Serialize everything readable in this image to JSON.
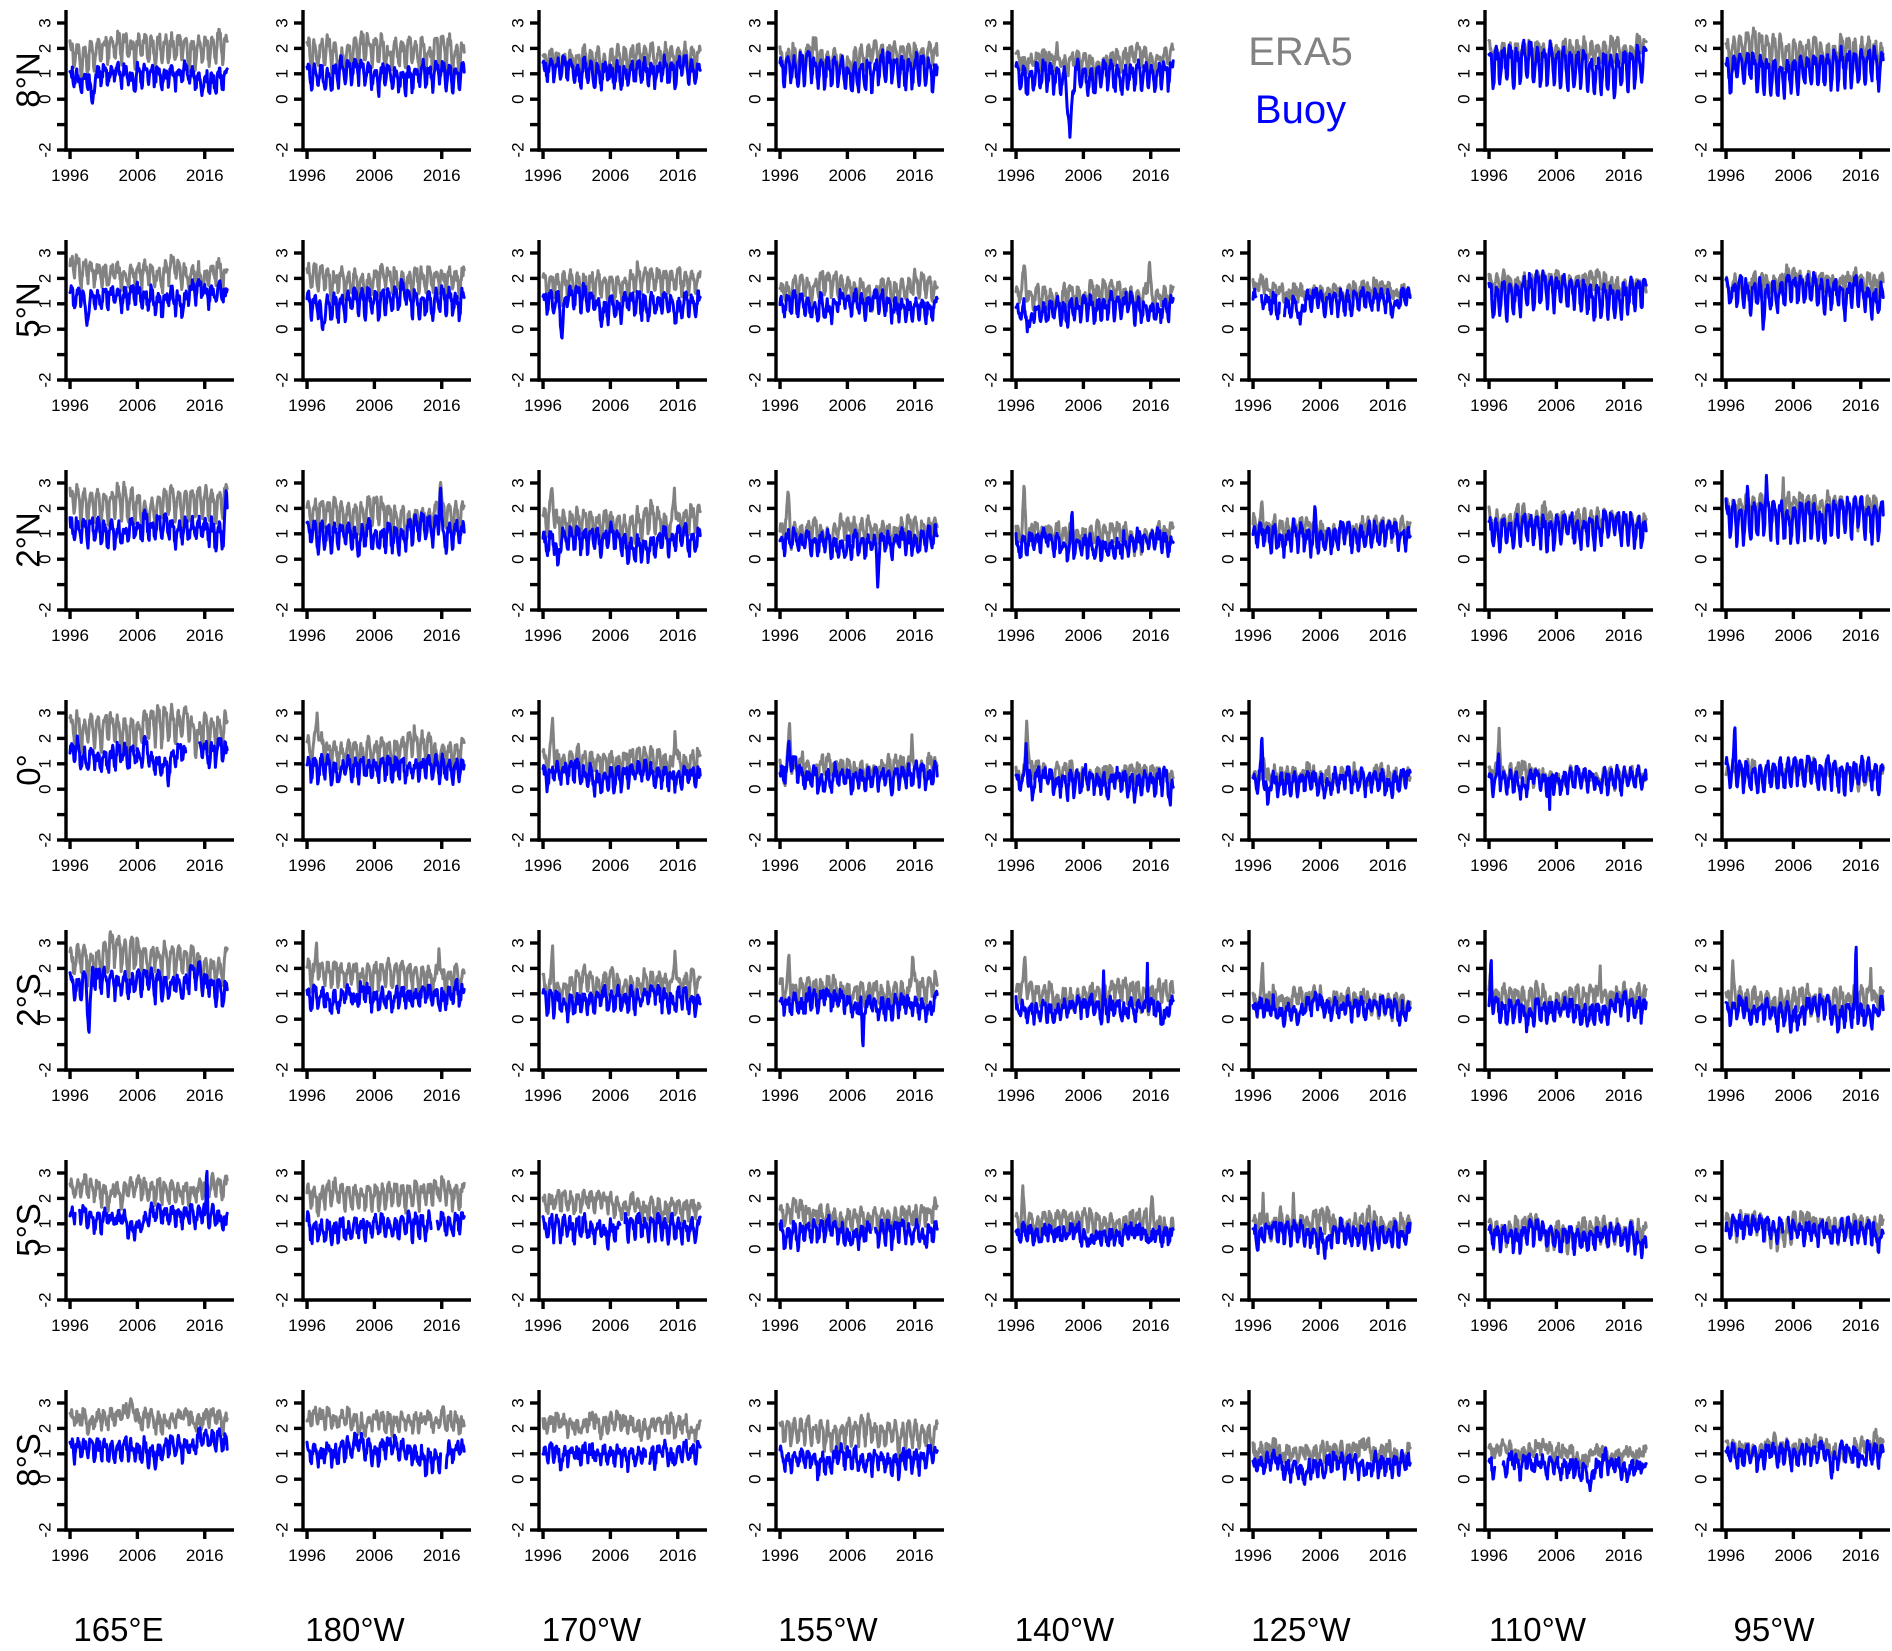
{
  "legend": {
    "era5_label": "ERA5",
    "buoy_label": "Buoy"
  },
  "chart_data": {
    "type": "line",
    "layout": "7x8 small-multiples grid; rows are latitudes, columns are longitudes",
    "rows": [
      "8°N",
      "5°N",
      "2°N",
      "0°",
      "2°S",
      "5°S",
      "8°S"
    ],
    "cols": [
      "165°E",
      "180°W",
      "170°W",
      "155°W",
      "140°W",
      "125°W",
      "110°W",
      "95°W"
    ],
    "xticks": [
      1996,
      2006,
      2016
    ],
    "xlim": [
      1995.4,
      2019.9
    ],
    "ylim": [
      -2,
      3.5
    ],
    "yticks": [
      -2,
      -1,
      0,
      1,
      2,
      3
    ],
    "ytick_labels": [
      "-2",
      "",
      "0",
      "1",
      "2",
      "3"
    ],
    "x_start": 1996.0,
    "x_end": 2019.33,
    "x_samples_per_year": 12,
    "series": [
      {
        "name": "ERA5",
        "color": "#828282"
      },
      {
        "name": "Buoy",
        "color": "#0000ff"
      }
    ],
    "legend_cell": {
      "row": "8°N",
      "col": "125°W"
    },
    "missing_panels": [
      {
        "row": "8°S",
        "col": "140°W"
      }
    ],
    "panel_param_legend": {
      "r": "row index into rows[]",
      "c": "column index into cols[]",
      "e": "ERA5 [mean, seasonal_amplitude]",
      "b": "Buoy [mean, seasonal_amplitude]",
      "ee": "ERA5 events [year, value, half_width_years]",
      "be": "Buoy events [year, value, half_width_years]",
      "bg": "Buoy data gaps [start_year, end_year]",
      "w": "slow-wander scale"
    },
    "panels": [
      {
        "r": 0,
        "c": 0,
        "e": [
          2.0,
          0.45
        ],
        "b": [
          0.9,
          0.3
        ],
        "be": [
          [
            1999.3,
            -0.3,
            0.6
          ]
        ]
      },
      {
        "r": 0,
        "c": 1,
        "e": [
          1.85,
          0.5
        ],
        "b": [
          1.0,
          0.4
        ]
      },
      {
        "r": 0,
        "c": 2,
        "e": [
          1.6,
          0.45
        ],
        "b": [
          1.1,
          0.35
        ]
      },
      {
        "r": 0,
        "c": 3,
        "e": [
          1.6,
          0.4
        ],
        "b": [
          1.15,
          0.5
        ]
      },
      {
        "r": 0,
        "c": 4,
        "e": [
          1.5,
          0.3
        ],
        "b": [
          0.95,
          0.45
        ],
        "be": [
          [
            2004.0,
            -1.5,
            0.9
          ]
        ]
      },
      {
        "r": 0,
        "c": 6,
        "e": [
          1.9,
          0.35
        ],
        "b": [
          1.35,
          0.65
        ]
      },
      {
        "r": 0,
        "c": 7,
        "e": [
          1.8,
          0.6
        ],
        "b": [
          1.2,
          0.55
        ]
      },
      {
        "r": 1,
        "c": 0,
        "e": [
          2.25,
          0.35
        ],
        "b": [
          1.25,
          0.3
        ],
        "be": [
          [
            1998.5,
            0.15,
            0.8
          ]
        ]
      },
      {
        "r": 1,
        "c": 1,
        "e": [
          2.0,
          0.4
        ],
        "b": [
          1.1,
          0.4
        ],
        "be": [
          [
            1998.3,
            -0.15,
            0.5
          ]
        ]
      },
      {
        "r": 1,
        "c": 2,
        "e": [
          1.8,
          0.4
        ],
        "b": [
          1.0,
          0.35
        ],
        "be": [
          [
            1998.8,
            -0.5,
            0.5
          ]
        ]
      },
      {
        "r": 1,
        "c": 3,
        "e": [
          1.55,
          0.35
        ],
        "b": [
          0.9,
          0.3
        ]
      },
      {
        "r": 1,
        "c": 4,
        "e": [
          1.35,
          0.3
        ],
        "b": [
          0.8,
          0.35
        ],
        "ee": [
          [
            1997.2,
            2.6,
            0.5
          ],
          [
            2015.8,
            2.8,
            0.5
          ]
        ],
        "be": [
          [
            1998.0,
            0.1,
            0.5
          ]
        ]
      },
      {
        "r": 1,
        "c": 5,
        "e": [
          1.55,
          0.15
        ],
        "b": [
          1.1,
          0.3
        ],
        "be": [
          [
            2003.0,
            0.2,
            0.4
          ]
        ],
        "bg": [
          [
            1996.5,
            1997.2
          ],
          [
            2000.0,
            2000.6
          ]
        ]
      },
      {
        "r": 1,
        "c": 6,
        "e": [
          1.75,
          0.25
        ],
        "b": [
          1.3,
          0.55
        ]
      },
      {
        "r": 1,
        "c": 7,
        "e": [
          1.85,
          0.3
        ],
        "b": [
          1.45,
          0.45
        ],
        "be": [
          [
            2001.5,
            0.0,
            0.4
          ]
        ]
      },
      {
        "r": 2,
        "c": 0,
        "e": [
          2.15,
          0.55
        ],
        "b": [
          1.2,
          0.4
        ],
        "ee": [
          [
            2019.2,
            3.0,
            0.4
          ]
        ],
        "be": [
          [
            2019.2,
            2.9,
            0.4
          ]
        ]
      },
      {
        "r": 2,
        "c": 1,
        "e": [
          1.7,
          0.5
        ],
        "b": [
          0.95,
          0.4
        ],
        "ee": [
          [
            2015.8,
            3.2,
            0.4
          ]
        ],
        "be": [
          [
            2015.8,
            3.1,
            0.35
          ]
        ]
      },
      {
        "r": 2,
        "c": 2,
        "e": [
          1.45,
          0.5
        ],
        "b": [
          0.75,
          0.35
        ],
        "ee": [
          [
            1997.3,
            2.9,
            0.6
          ],
          [
            2015.5,
            2.8,
            0.5
          ]
        ],
        "be": [
          [
            1998.2,
            -0.4,
            0.5
          ]
        ]
      },
      {
        "r": 2,
        "c": 3,
        "e": [
          1.1,
          0.35
        ],
        "b": [
          0.65,
          0.3
        ],
        "ee": [
          [
            1997.2,
            2.8,
            0.5
          ]
        ],
        "be": [
          [
            2010.5,
            -1.1,
            0.4
          ]
        ]
      },
      {
        "r": 2,
        "c": 4,
        "e": [
          1.0,
          0.3
        ],
        "b": [
          0.6,
          0.3
        ],
        "ee": [
          [
            1997.2,
            3.1,
            0.4
          ]
        ],
        "be": [
          [
            2004.3,
            2.1,
            0.3
          ]
        ]
      },
      {
        "r": 2,
        "c": 5,
        "e": [
          1.2,
          0.3
        ],
        "b": [
          0.85,
          0.35
        ],
        "ee": [
          [
            1997.3,
            2.4,
            0.4
          ]
        ],
        "be": [
          [
            2005.2,
            2.3,
            0.3
          ]
        ]
      },
      {
        "r": 2,
        "c": 6,
        "e": [
          1.5,
          0.35
        ],
        "b": [
          1.15,
          0.45
        ]
      },
      {
        "r": 2,
        "c": 7,
        "e": [
          1.9,
          0.45
        ],
        "b": [
          1.7,
          0.6
        ],
        "ee": [
          [
            2004.5,
            3.2,
            0.3
          ]
        ],
        "be": [
          [
            1999.2,
            3.1,
            0.25
          ],
          [
            2002.0,
            3.3,
            0.2
          ]
        ]
      },
      {
        "r": 3,
        "c": 0,
        "e": [
          2.4,
          0.55
        ],
        "b": [
          1.25,
          0.3
        ],
        "bg": [
          [
            2013.2,
            2015.2
          ]
        ],
        "w": 0.3
      },
      {
        "r": 3,
        "c": 1,
        "e": [
          1.5,
          0.5
        ],
        "b": [
          0.85,
          0.35
        ],
        "ee": [
          [
            1997.5,
            3.0,
            0.6
          ]
        ]
      },
      {
        "r": 3,
        "c": 2,
        "e": [
          1.05,
          0.4
        ],
        "b": [
          0.55,
          0.3
        ],
        "ee": [
          [
            1997.4,
            2.9,
            0.5
          ],
          [
            2015.6,
            2.4,
            0.4
          ]
        ]
      },
      {
        "r": 3,
        "c": 3,
        "e": [
          0.8,
          0.3
        ],
        "b": [
          0.45,
          0.3
        ],
        "ee": [
          [
            1997.4,
            2.7,
            0.5
          ],
          [
            2015.6,
            2.3,
            0.3
          ]
        ],
        "be": [
          [
            1997.3,
            2.0,
            0.35
          ]
        ]
      },
      {
        "r": 3,
        "c": 4,
        "e": [
          0.55,
          0.25
        ],
        "b": [
          0.35,
          0.3
        ],
        "ee": [
          [
            1997.6,
            2.8,
            0.5
          ]
        ],
        "be": [
          [
            1997.5,
            1.8,
            0.4
          ],
          [
            1998.4,
            -0.5,
            0.3
          ],
          [
            2018.9,
            -0.7,
            0.3
          ]
        ]
      },
      {
        "r": 3,
        "c": 5,
        "e": [
          0.5,
          0.2
        ],
        "b": [
          0.3,
          0.3
        ],
        "ee": [
          [
            1997.6,
            1.3,
            0.4
          ]
        ],
        "be": [
          [
            1997.3,
            2.25,
            0.3
          ],
          [
            1998.2,
            -0.8,
            0.4
          ]
        ]
      },
      {
        "r": 3,
        "c": 6,
        "e": [
          0.5,
          0.25
        ],
        "b": [
          0.35,
          0.3
        ],
        "ee": [
          [
            1997.5,
            2.4,
            0.4
          ]
        ],
        "be": [
          [
            1997.4,
            1.5,
            0.3
          ],
          [
            2005.0,
            -0.8,
            0.2
          ]
        ]
      },
      {
        "r": 3,
        "c": 7,
        "e": [
          0.6,
          0.25
        ],
        "b": [
          0.7,
          0.45
        ],
        "be": [
          [
            1997.3,
            2.7,
            0.3
          ]
        ]
      },
      {
        "r": 4,
        "c": 0,
        "e": [
          2.3,
          0.5
        ],
        "b": [
          1.25,
          0.4
        ],
        "be": [
          [
            1998.8,
            -0.7,
            0.6
          ]
        ],
        "w": 0.3
      },
      {
        "r": 4,
        "c": 1,
        "e": [
          1.65,
          0.45
        ],
        "b": [
          0.85,
          0.3
        ],
        "ee": [
          [
            1997.4,
            3.1,
            0.4
          ],
          [
            2015.6,
            2.9,
            0.4
          ]
        ]
      },
      {
        "r": 4,
        "c": 2,
        "e": [
          1.35,
          0.4
        ],
        "b": [
          0.7,
          0.3
        ],
        "ee": [
          [
            1997.4,
            3.0,
            0.4
          ],
          [
            2015.6,
            2.8,
            0.4
          ]
        ]
      },
      {
        "r": 4,
        "c": 3,
        "e": [
          1.1,
          0.35
        ],
        "b": [
          0.6,
          0.25
        ],
        "ee": [
          [
            1997.3,
            2.7,
            0.4
          ],
          [
            2015.7,
            2.7,
            0.4
          ]
        ],
        "be": [
          [
            2008.3,
            -1.4,
            0.3
          ]
        ]
      },
      {
        "r": 4,
        "c": 4,
        "e": [
          0.95,
          0.35
        ],
        "b": [
          0.45,
          0.25
        ],
        "ee": [
          [
            1997.3,
            2.6,
            0.4
          ]
        ],
        "be": [
          [
            2009.0,
            1.9,
            0.2
          ],
          [
            2015.5,
            2.2,
            0.2
          ]
        ]
      },
      {
        "r": 4,
        "c": 5,
        "e": [
          0.75,
          0.3
        ],
        "b": [
          0.4,
          0.25
        ],
        "ee": [
          [
            1997.4,
            2.3,
            0.4
          ]
        ]
      },
      {
        "r": 4,
        "c": 6,
        "e": [
          0.75,
          0.35
        ],
        "b": [
          0.4,
          0.3
        ],
        "ee": [
          [
            1996.2,
            2.0,
            0.3
          ],
          [
            2012.5,
            2.1,
            0.3
          ]
        ],
        "be": [
          [
            1996.3,
            2.8,
            0.25
          ]
        ]
      },
      {
        "r": 4,
        "c": 7,
        "e": [
          0.65,
          0.4
        ],
        "b": [
          0.35,
          0.3
        ],
        "ee": [
          [
            1997.0,
            2.3,
            0.3
          ],
          [
            2017.5,
            2.0,
            0.3
          ]
        ],
        "be": [
          [
            2015.3,
            3.5,
            0.25
          ]
        ]
      },
      {
        "r": 5,
        "c": 0,
        "e": [
          2.4,
          0.3
        ],
        "b": [
          1.25,
          0.25
        ],
        "be": [
          [
            2016.3,
            3.6,
            0.2
          ]
        ],
        "bg": [
          [
            1996.8,
            1997.4
          ]
        ]
      },
      {
        "r": 5,
        "c": 1,
        "e": [
          2.1,
          0.35
        ],
        "b": [
          0.95,
          0.35
        ],
        "bg": [
          [
            2014.5,
            2015.3
          ]
        ]
      },
      {
        "r": 5,
        "c": 2,
        "e": [
          1.75,
          0.3
        ],
        "b": [
          0.8,
          0.35
        ],
        "bg": [
          [
            2007.5,
            2008.1
          ]
        ]
      },
      {
        "r": 5,
        "c": 3,
        "e": [
          1.3,
          0.3
        ],
        "b": [
          0.6,
          0.3
        ],
        "bg": [
          [
            2009.5,
            2010.1
          ]
        ]
      },
      {
        "r": 5,
        "c": 4,
        "e": [
          1.0,
          0.35
        ],
        "b": [
          0.5,
          0.2
        ],
        "ee": [
          [
            1997.0,
            2.5,
            0.4
          ],
          [
            2016.2,
            2.2,
            0.3
          ]
        ]
      },
      {
        "r": 5,
        "c": 5,
        "e": [
          0.9,
          0.35
        ],
        "b": [
          0.55,
          0.3
        ],
        "ee": [
          [
            1997.5,
            2.2,
            0.3
          ],
          [
            2002.0,
            2.2,
            0.2
          ]
        ]
      },
      {
        "r": 5,
        "c": 6,
        "e": [
          0.75,
          0.4
        ],
        "b": [
          0.5,
          0.3
        ]
      },
      {
        "r": 5,
        "c": 7,
        "e": [
          0.9,
          0.35
        ],
        "b": [
          0.75,
          0.3
        ],
        "bg": [
          [
            2004.5,
            2005.2
          ]
        ]
      },
      {
        "r": 6,
        "c": 0,
        "e": [
          2.35,
          0.2
        ],
        "b": [
          1.2,
          0.3
        ]
      },
      {
        "r": 6,
        "c": 1,
        "e": [
          2.25,
          0.25
        ],
        "b": [
          1.15,
          0.3
        ],
        "bg": [
          [
            2015.9,
            2016.6
          ]
        ]
      },
      {
        "r": 6,
        "c": 2,
        "e": [
          2.05,
          0.2
        ],
        "b": [
          0.95,
          0.25
        ],
        "bg": [
          [
            2011.3,
            2011.8
          ]
        ]
      },
      {
        "r": 6,
        "c": 3,
        "e": [
          1.8,
          0.4
        ],
        "b": [
          0.8,
          0.3
        ]
      },
      {
        "r": 6,
        "c": 5,
        "e": [
          1.1,
          0.2
        ],
        "b": [
          0.6,
          0.25
        ],
        "be": [
          [
            2006.5,
            0.05,
            0.4
          ]
        ]
      },
      {
        "r": 6,
        "c": 6,
        "e": [
          1.05,
          0.15
        ],
        "b": [
          0.55,
          0.25
        ],
        "be": [
          [
            2011.0,
            -0.45,
            0.8
          ]
        ],
        "bg": [
          [
            1996.9,
            1998.0
          ]
        ]
      },
      {
        "r": 6,
        "c": 7,
        "e": [
          1.25,
          0.2
        ],
        "b": [
          1.0,
          0.3
        ]
      }
    ]
  }
}
